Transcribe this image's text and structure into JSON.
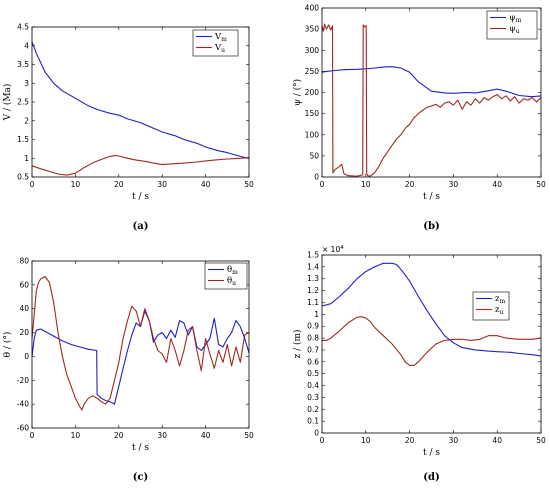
{
  "chart_data": [
    {
      "type": "line",
      "caption": "(a)",
      "xlabel": "t / s",
      "ylabel": "V / (Ma)",
      "xlim": [
        0,
        50
      ],
      "ylim": [
        0.5,
        4.5
      ],
      "xticks": [
        "0",
        "10",
        "20",
        "30",
        "40",
        "50"
      ],
      "yticks": [
        "0.5",
        "1",
        "1.5",
        "2",
        "2.5",
        "3",
        "3.5",
        "4",
        "4.5"
      ],
      "legend_position": "top-right",
      "series": [
        {
          "name": "V",
          "sub": "m",
          "color": "#1f1fc8",
          "x": [
            0,
            0.5,
            1,
            2,
            3,
            4,
            5,
            7,
            10,
            13,
            15,
            18,
            20,
            22,
            25,
            28,
            30,
            33,
            35,
            38,
            40,
            43,
            45,
            48,
            50
          ],
          "y": [
            4.1,
            3.95,
            3.8,
            3.55,
            3.3,
            3.15,
            3.0,
            2.8,
            2.6,
            2.4,
            2.3,
            2.2,
            2.15,
            2.05,
            1.95,
            1.8,
            1.7,
            1.6,
            1.5,
            1.4,
            1.3,
            1.2,
            1.15,
            1.05,
            1.0
          ]
        },
        {
          "name": "V",
          "sub": "u",
          "color": "#a0281e",
          "x": [
            0,
            2,
            4,
            6,
            8,
            10,
            12,
            14,
            16,
            18,
            19,
            20,
            22,
            24,
            26,
            28,
            30,
            32,
            35,
            38,
            40,
            42,
            45,
            48,
            50
          ],
          "y": [
            0.8,
            0.72,
            0.65,
            0.58,
            0.55,
            0.6,
            0.75,
            0.88,
            0.97,
            1.05,
            1.07,
            1.06,
            1.0,
            0.95,
            0.92,
            0.87,
            0.83,
            0.85,
            0.87,
            0.9,
            0.93,
            0.95,
            0.98,
            1.0,
            1.02
          ]
        }
      ]
    },
    {
      "type": "line",
      "caption": "(b)",
      "xlabel": "t / s",
      "ylabel": "ψ / (°)",
      "xlim": [
        0,
        50
      ],
      "ylim": [
        0,
        400
      ],
      "xticks": [
        "0",
        "10",
        "20",
        "30",
        "40",
        "50"
      ],
      "yticks": [
        "0",
        "50",
        "100",
        "150",
        "200",
        "250",
        "300",
        "350",
        "400"
      ],
      "legend_position": "top-right",
      "series": [
        {
          "name": "ψ",
          "sub": "m",
          "color": "#1f1fc8",
          "x": [
            0,
            1,
            3,
            5,
            8,
            10,
            12,
            14,
            16,
            18,
            20,
            22,
            25,
            28,
            30,
            33,
            35,
            38,
            40,
            42,
            45,
            48,
            50
          ],
          "y": [
            248,
            250,
            252,
            254,
            255,
            256,
            258,
            260,
            261,
            258,
            248,
            225,
            203,
            199,
            198,
            200,
            199,
            204,
            208,
            203,
            193,
            190,
            192
          ]
        },
        {
          "name": "ψ",
          "sub": "u",
          "color": "#a0281e",
          "x": [
            0,
            0.3,
            0.6,
            1,
            1.5,
            2,
            2.4,
            2.5,
            3,
            4,
            4.5,
            5,
            6,
            8,
            9.3,
            9.4,
            9.7,
            10.1,
            10.2,
            10.4,
            11,
            12,
            13,
            14,
            15,
            16,
            17,
            18,
            19,
            20,
            21,
            22,
            23,
            24,
            25,
            26,
            27,
            28,
            29,
            30,
            31,
            32,
            33,
            34,
            35,
            36,
            37,
            38,
            39,
            40,
            41,
            42,
            43,
            44,
            45,
            46,
            47,
            48,
            49,
            50
          ],
          "y": [
            358,
            345,
            362,
            350,
            360,
            348,
            358,
            10,
            18,
            25,
            30,
            8,
            3,
            2,
            5,
            360,
            355,
            358,
            8,
            3,
            2,
            10,
            25,
            45,
            60,
            75,
            90,
            100,
            115,
            125,
            140,
            150,
            158,
            165,
            168,
            172,
            165,
            175,
            178,
            170,
            182,
            160,
            178,
            170,
            185,
            175,
            188,
            182,
            190,
            195,
            185,
            192,
            180,
            190,
            175,
            185,
            182,
            188,
            178,
            188
          ]
        }
      ]
    },
    {
      "type": "line",
      "caption": "(c)",
      "xlabel": "t / s",
      "ylabel": "θ / (°)",
      "xlim": [
        0,
        50
      ],
      "ylim": [
        -60,
        80
      ],
      "xticks": [
        "0",
        "10",
        "20",
        "30",
        "40",
        "50"
      ],
      "yticks": [
        "-60",
        "-40",
        "-20",
        "0",
        "20",
        "40",
        "60",
        "80"
      ],
      "legend_position": "top-right",
      "series": [
        {
          "name": "θ",
          "sub": "m",
          "color": "#1f1fc8",
          "x": [
            0,
            0.5,
            1,
            2,
            3,
            5,
            7,
            9,
            11,
            13,
            14.9,
            15,
            16,
            17,
            18,
            19,
            20,
            21,
            22,
            23,
            24,
            25,
            26,
            27,
            28,
            29,
            30,
            31,
            32,
            33,
            34,
            35,
            36,
            37,
            38,
            39,
            40,
            41,
            42,
            43,
            44,
            45,
            46,
            47,
            48,
            49,
            50
          ],
          "y": [
            0,
            15,
            22,
            23,
            21,
            17,
            13,
            10,
            8,
            6,
            5,
            -32,
            -35,
            -37,
            -38,
            -40,
            -25,
            -10,
            5,
            18,
            28,
            25,
            38,
            30,
            12,
            18,
            20,
            15,
            22,
            16,
            30,
            28,
            18,
            25,
            8,
            5,
            10,
            15,
            32,
            10,
            8,
            15,
            20,
            30,
            25,
            15,
            3
          ]
        },
        {
          "name": "θ",
          "sub": "u",
          "color": "#a0281e",
          "x": [
            0,
            0.5,
            1,
            1.5,
            2,
            3,
            4,
            5,
            6,
            7,
            8,
            9,
            10,
            11,
            11.5,
            12,
            13,
            14,
            15,
            16,
            17,
            18,
            19,
            20,
            21,
            22,
            23,
            24,
            25,
            26,
            27,
            28,
            29,
            30,
            31,
            32,
            33,
            34,
            35,
            36,
            37,
            38,
            39,
            40,
            41,
            42,
            43,
            44,
            45,
            46,
            47,
            48,
            49,
            50
          ],
          "y": [
            15,
            35,
            55,
            62,
            65,
            67,
            62,
            45,
            20,
            0,
            -15,
            -25,
            -35,
            -42,
            -45,
            -40,
            -35,
            -33,
            -35,
            -38,
            -40,
            -35,
            -20,
            -5,
            15,
            30,
            42,
            38,
            25,
            40,
            30,
            15,
            5,
            2,
            -5,
            15,
            5,
            -8,
            5,
            22,
            25,
            5,
            -12,
            15,
            2,
            -10,
            5,
            -5,
            10,
            -8,
            8,
            -5,
            18,
            20
          ]
        }
      ]
    },
    {
      "type": "line",
      "caption": "(d)",
      "xlabel": "t / s",
      "ylabel": "z / (m)",
      "exponent": "× 10",
      "exponent_power": "4",
      "xlim": [
        0,
        50
      ],
      "ylim": [
        0,
        1.5
      ],
      "xticks": [
        "0",
        "10",
        "20",
        "30",
        "40",
        "50"
      ],
      "yticks": [
        "0",
        "0.1",
        "0.2",
        "0.3",
        "0.4",
        "0.5",
        "0.6",
        "0.7",
        "0.8",
        "0.9",
        "1",
        "1.1",
        "1.2",
        "1.3",
        "1.4",
        "1.5"
      ],
      "legend_position": "right",
      "series": [
        {
          "name": "z",
          "sub": "m",
          "color": "#1f1fc8",
          "x": [
            0,
            2,
            4,
            6,
            8,
            10,
            12,
            14,
            15,
            16,
            17,
            18,
            20,
            22,
            24,
            26,
            28,
            30,
            32,
            35,
            38,
            40,
            43,
            45,
            48,
            50
          ],
          "y": [
            1.07,
            1.09,
            1.15,
            1.22,
            1.3,
            1.36,
            1.4,
            1.43,
            1.43,
            1.43,
            1.42,
            1.38,
            1.28,
            1.15,
            1.03,
            0.92,
            0.82,
            0.76,
            0.72,
            0.7,
            0.69,
            0.685,
            0.68,
            0.67,
            0.66,
            0.65
          ]
        },
        {
          "name": "z",
          "sub": "u",
          "color": "#a0281e",
          "x": [
            0,
            1,
            2,
            4,
            6,
            8,
            9,
            10,
            11,
            12,
            14,
            16,
            18,
            19,
            20,
            21,
            22,
            24,
            26,
            28,
            30,
            32,
            34,
            36,
            38,
            40,
            42,
            45,
            48,
            50
          ],
          "y": [
            0.78,
            0.78,
            0.8,
            0.86,
            0.93,
            0.975,
            0.98,
            0.97,
            0.94,
            0.89,
            0.82,
            0.75,
            0.66,
            0.6,
            0.57,
            0.57,
            0.6,
            0.68,
            0.75,
            0.78,
            0.79,
            0.79,
            0.78,
            0.79,
            0.82,
            0.82,
            0.8,
            0.79,
            0.79,
            0.8
          ]
        }
      ]
    }
  ]
}
